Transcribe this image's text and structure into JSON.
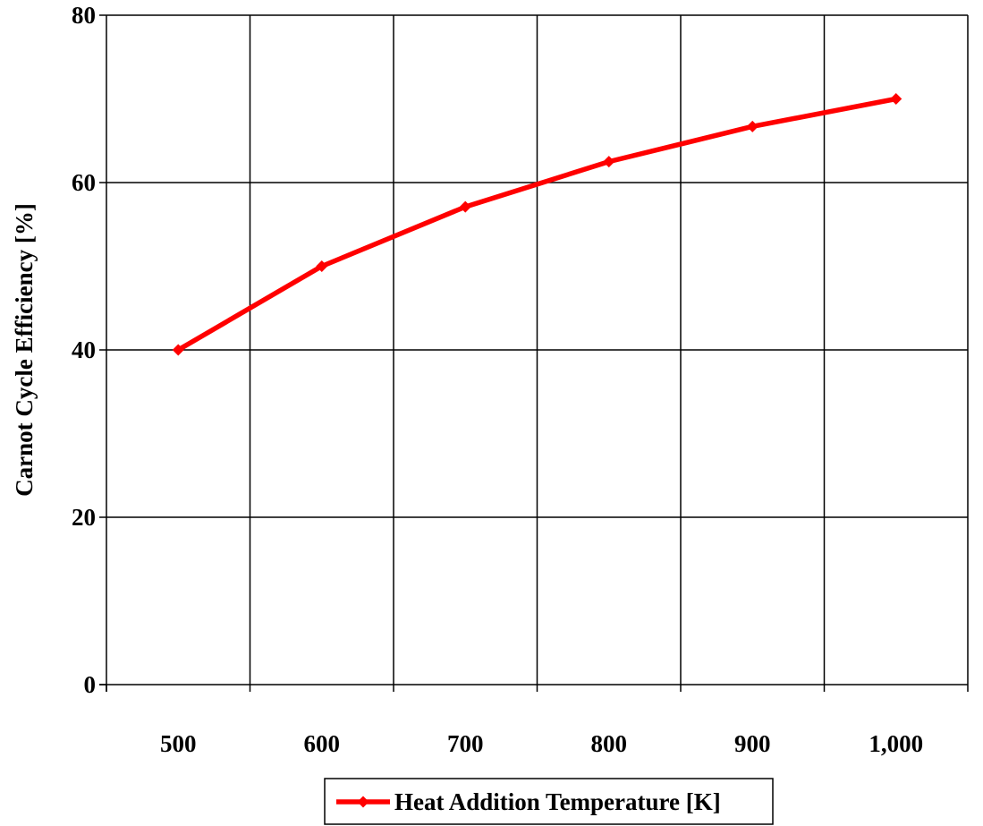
{
  "chart_data": {
    "type": "line",
    "x": [
      500,
      600,
      700,
      800,
      900,
      1000
    ],
    "x_tick_labels": [
      "500",
      "600",
      "700",
      "800",
      "900",
      "1,000"
    ],
    "y_ticks": [
      0,
      20,
      40,
      60,
      80
    ],
    "y_tick_labels": [
      "0",
      "20",
      "40",
      "60",
      "80"
    ],
    "ylim": [
      0,
      80
    ],
    "ylabel": "Carnot Cycle Efficiency [%]",
    "xlabel": "",
    "grid": true,
    "legend_position": "bottom",
    "series": [
      {
        "name": "Heat Addition Temperature [K]",
        "color": "#ff0000",
        "marker": "diamond",
        "values": [
          40,
          50,
          57.1,
          62.5,
          66.7,
          70
        ]
      }
    ]
  }
}
